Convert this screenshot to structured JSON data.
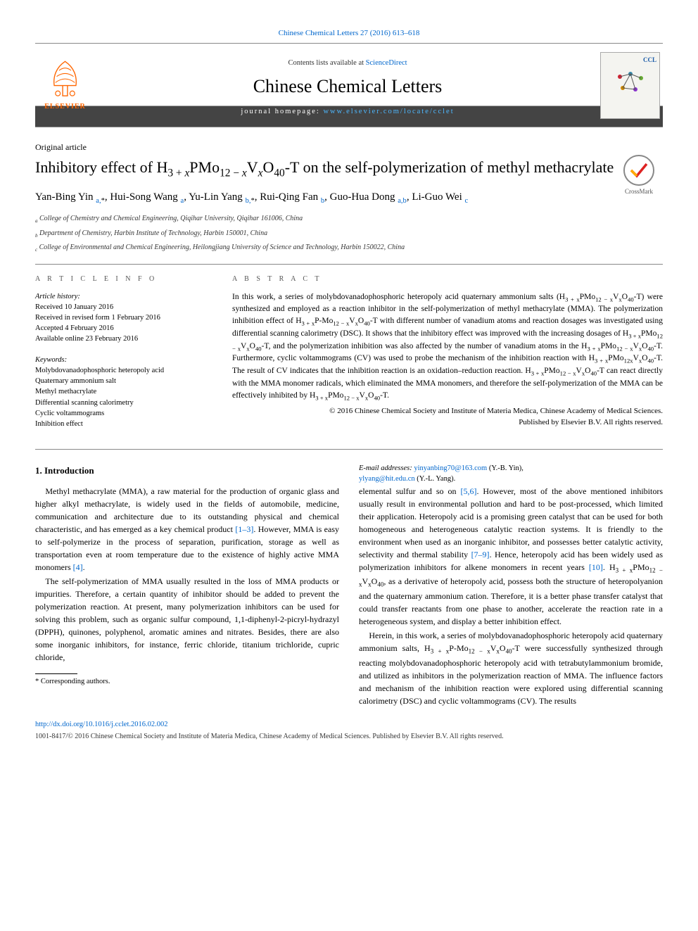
{
  "topLink": "Chinese Chemical Letters 27 (2016) 613–618",
  "masthead": {
    "contentsPrefix": "Contents lists available at ",
    "contentsLink": "ScienceDirect",
    "journalName": "Chinese Chemical Letters",
    "homepageLabel": "journal homepage: ",
    "homepageUrl": "www.elsevier.com/locate/cclet",
    "elsevier": "ELSEVIER",
    "cclBadge": "CCL"
  },
  "articleType": "Original article",
  "crossmark": "CrossMark",
  "titleHtml": "Inhibitory effect of H<sub>3 + <i>x</i></sub>PMo<sub>12 − <i>x</i></sub>V<sub><i>x</i></sub>O<sub>40</sub>-T on the self-polymerization of methyl methacrylate",
  "authorsHtml": "Yan-Bing Yin <a href=\"#\"><sup>a,</sup></a><sup>*</sup>, Hui-Song Wang <a href=\"#\"><sup>a</sup></a>, Yu-Lin Yang <a href=\"#\"><sup>b,</sup></a><sup>*</sup>, Rui-Qing Fan <a href=\"#\"><sup>b</sup></a>, Guo-Hua Dong <a href=\"#\"><sup>a,b</sup></a>, Li-Guo Wei <a href=\"#\"><sup>c</sup></a>",
  "affiliations": [
    "<sup>a</sup> College of Chemistry and Chemical Engineering, Qiqihar University, Qiqihar 161006, China",
    "<sup>b</sup> Department of Chemistry, Harbin Institute of Technology, Harbin 150001, China",
    "<sup>c</sup> College of Environmental and Chemical Engineering, Heilongjiang University of Science and Technology, Harbin 150022, China"
  ],
  "meta": {
    "articleInfoHead": "A R T I C L E   I N F O",
    "abstractHead": "A B S T R A C T",
    "historyLabel": "Article history:",
    "history": [
      "Received 10 January 2016",
      "Received in revised form 1 February 2016",
      "Accepted 4 February 2016",
      "Available online 23 February 2016"
    ],
    "keywordsLabel": "Keywords:",
    "keywords": [
      "Molybdovanadophosphoric heteropoly acid",
      "Quaternary ammonium salt",
      "Methyl methacrylate",
      "Differential scanning calorimetry",
      "Cyclic voltammograms",
      "Inhibition effect"
    ],
    "abstractHtml": "In this work, a series of molybdovanadophosphoric heteropoly acid quaternary ammonium salts (H<sub>3 + x</sub>PMo<sub>12 − x</sub>V<sub>x</sub>O<sub>40</sub>-T) were synthesized and employed as a reaction inhibitor in the self-polymerization of methyl methacrylate (MMA). The polymerization inhibition effect of H<sub>3 + x</sub>P-Mo<sub>12 − x</sub>V<sub>x</sub>O<sub>40</sub>-T with different number of vanadium atoms and reaction dosages was investigated using differential scanning calorimetry (DSC). It shows that the inhibitory effect was improved with the increasing dosages of H<sub>3 + x</sub>PMo<sub>12 − x</sub>V<sub>x</sub>O<sub>40</sub>-T, and the polymerization inhibition was also affected by the number of vanadium atoms in the H<sub>3 + x</sub>PMo<sub>12 − x</sub>V<sub>x</sub>O<sub>40</sub>-T. Furthermore, cyclic voltammograms (CV) was used to probe the mechanism of the inhibition reaction with H<sub>3 + x</sub>PMo<sub>12x</sub>V<sub>x</sub>O<sub>40</sub>-T. The result of CV indicates that the inhibition reaction is an oxidation–reduction reaction. H<sub>3 + x</sub>PMo<sub>12 − x</sub>V<sub>x</sub>O<sub>40</sub>-T can react directly with the MMA monomer radicals, which eliminated the MMA monomers, and therefore the self-polymerization of the MMA can be effectively inhibited by H<sub>3 + x</sub>PMo<sub>12 − x</sub>V<sub>x</sub>O<sub>40</sub>-T.",
    "copyright1": "© 2016 Chinese Chemical Society and Institute of Materia Medica, Chinese Academy of Medical Sciences.",
    "copyright2": "Published by Elsevier B.V. All rights reserved."
  },
  "sections": {
    "introHead": "1. Introduction",
    "p1Html": "Methyl methacrylate (MMA), a raw material for the production of organic glass and higher alkyl methacrylate, is widely used in the fields of automobile, medicine, communication and architecture due to its outstanding physical and chemical characteristic, and has emerged as a key chemical product <a href=\"#\">[1–3]</a>. However, MMA is easy to self-polymerize in the process of separation, purification, storage as well as transportation even at room temperature due to the existence of highly active MMA monomers <a href=\"#\">[4]</a>.",
    "p2Html": "The self-polymerization of MMA usually resulted in the loss of MMA products or impurities. Therefore, a certain quantity of inhibitor should be added to prevent the polymerization reaction. At present, many polymerization inhibitors can be used for solving this problem, such as organic sulfur compound, 1,1-diphenyl-2-picryl-hydrazyl (DPPH), quinones, polyphenol, aromatic amines and nitrates. Besides, there are also some inorganic inhibitors, for instance, ferric chloride, titanium trichloride, cupric chloride,",
    "p3Html": "elemental sulfur and so on <a href=\"#\">[5,6]</a>. However, most of the above mentioned inhibitors usually result in environmental pollution and hard to be post-processed, which limited their application. Heteropoly acid is a promising green catalyst that can be used for both homogeneous and heterogeneous catalytic reaction systems. It is friendly to the environment when used as an inorganic inhibitor, and possesses better catalytic activity, selectivity and thermal stability <a href=\"#\">[7–9]</a>. Hence, heteropoly acid has been widely used as polymerization inhibitors for alkene monomers in recent years <a href=\"#\">[10]</a>. H<sub>3 + x</sub>PMo<sub>12 − x</sub>V<sub>x</sub>O<sub>40</sub>, as a derivative of heteropoly acid, possess both the structure of heteropolyanion and the quaternary ammonium cation. Therefore, it is a better phase transfer catalyst that could transfer reactants from one phase to another, accelerate the reaction rate in a heterogeneous system, and display a better inhibition effect.",
    "p4Html": "Herein, in this work, a series of molybdovanadophosphoric heteropoly acid quaternary ammonium salts, H<sub>3 + x</sub>P-Mo<sub>12 − x</sub>V<sub>x</sub>O<sub>40</sub>-T were successfully synthesized through reacting molybdovanadophosphoric heteropoly acid with tetrabutylammonium bromide, and utilized as inhibitors in the polymerization reaction of MMA. The influence factors and mechanism of the inhibition reaction were explored using differential scanning calorimetry (DSC) and cyclic voltammograms (CV). The results"
  },
  "footnotes": {
    "corresponding": "* Corresponding authors.",
    "emailsLabel": "E-mail addresses: ",
    "email1": "yinyanbing70@163.com",
    "email1Who": " (Y.-B. Yin),",
    "email2": "ylyang@hit.edu.cn",
    "email2Who": " (Y.-L. Yang)."
  },
  "doi": {
    "url": "http://dx.doi.org/10.1016/j.cclet.2016.02.002",
    "issnLine": "1001-8417/© 2016 Chinese Chemical Society and Institute of Materia Medica, Chinese Academy of Medical Sciences. Published by Elsevier B.V. All rights reserved."
  },
  "colors": {
    "link": "#0066cc",
    "elsevierOrange": "#ff6600",
    "mastheadDark": "#444444",
    "rule": "#888888"
  }
}
